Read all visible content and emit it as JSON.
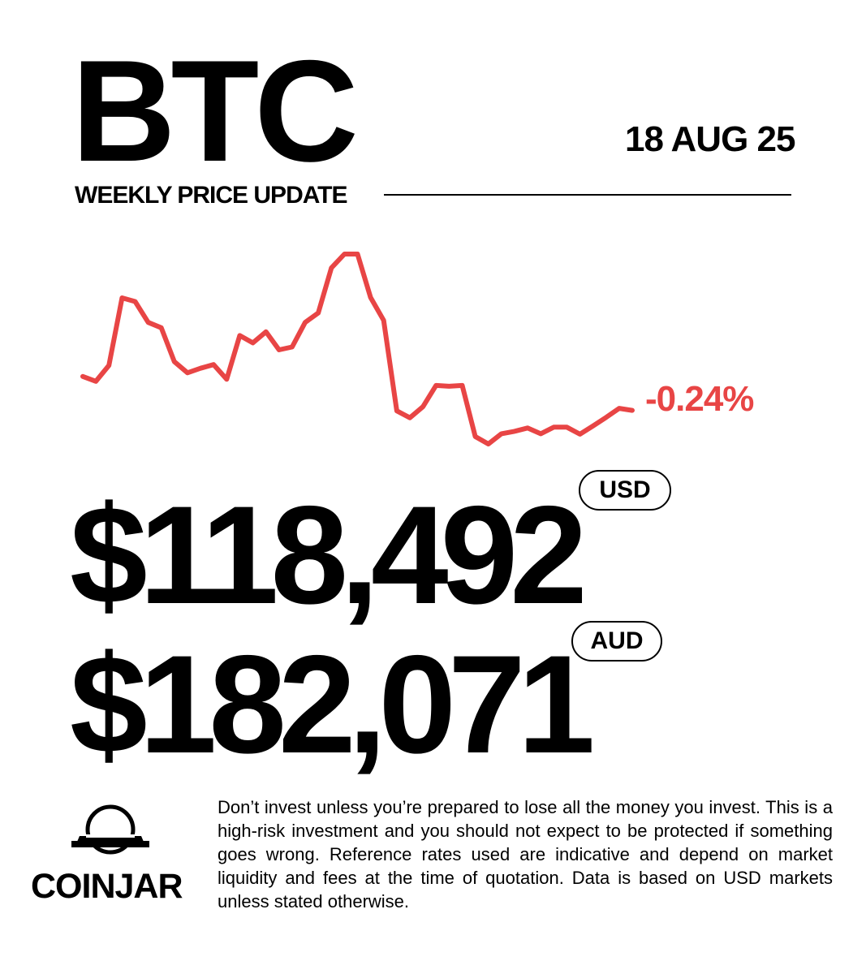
{
  "header": {
    "ticker": "BTC",
    "date": "18 AUG 25",
    "subtitle": "WEEKLY PRICE UPDATE"
  },
  "chart": {
    "change_label": "-0.24%",
    "line_color": "#e84545"
  },
  "chart_data": {
    "type": "line",
    "title": "",
    "xlabel": "",
    "ylabel": "",
    "grid": false,
    "legend": "none",
    "x": [
      0,
      1,
      2,
      3,
      4,
      5,
      6,
      7,
      8,
      9,
      10,
      11,
      12,
      13,
      14,
      15,
      16,
      17,
      18,
      19,
      20,
      21,
      22,
      23,
      24,
      25,
      26,
      27,
      28,
      29,
      30,
      31,
      32,
      33,
      34,
      35,
      36,
      37,
      38,
      39,
      40,
      41,
      42
    ],
    "series": [
      {
        "values": [
          60.1,
          58.9,
          62.8,
          79.3,
          78.4,
          73.3,
          72.0,
          63.7,
          61.0,
          62.1,
          63.0,
          59.4,
          70.1,
          68.3,
          71.0,
          66.6,
          67.3,
          73.3,
          75.6,
          86.6,
          90.0,
          90.0,
          79.4,
          73.8,
          51.7,
          50.0,
          52.7,
          57.9,
          57.7,
          57.9,
          45.4,
          43.6,
          46.1,
          46.7,
          47.5,
          46.1,
          47.7,
          47.7,
          46.0,
          48.0,
          50.1,
          52.3,
          51.8
        ]
      }
    ]
  },
  "prices": {
    "usd_value": "$118,492",
    "usd_label": "USD",
    "aud_value": "$182,071",
    "aud_label": "AUD"
  },
  "footer": {
    "logo_icon": "coinjar-logo-icon",
    "brand": "COINJAR",
    "disclaimer": "Don’t invest unless you’re prepared to lose all the money you invest. This is a high-risk investment and you should not expect to be protected if something goes wrong. Reference rates used are indicative and depend on market liquidity and fees at the time of quotation. Data is based on USD markets unless stated otherwise."
  }
}
